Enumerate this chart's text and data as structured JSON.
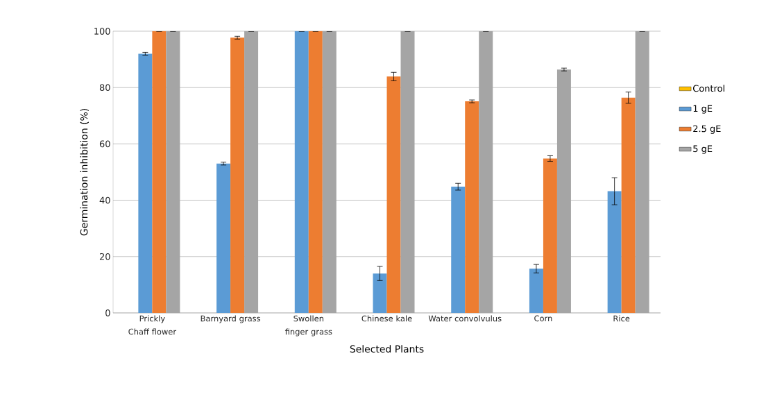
{
  "chart_data": {
    "type": "bar",
    "xlabel": "Selected Plants",
    "ylabel": "Germination inhibition (%)",
    "categories": [
      "Prickly Chaff flower",
      "Barnyard grass",
      "Swollen finger grass",
      "Chinese kale",
      "Water convolvulus",
      "Corn",
      "Rice"
    ],
    "series": [
      {
        "name": "Control",
        "color": "#ffc000",
        "values": [
          0,
          0,
          0,
          0,
          0,
          0,
          0
        ]
      },
      {
        "name": "1 gE",
        "color": "#5b9bd5",
        "values": [
          92,
          53,
          100,
          14,
          44.8,
          15.7,
          43.2
        ],
        "errors": [
          0.5,
          0.5,
          0,
          2.5,
          1.2,
          1.5,
          4.8
        ]
      },
      {
        "name": "2.5 gE",
        "color": "#ed7d31",
        "values": [
          100,
          97.7,
          100,
          83.9,
          75.1,
          54.8,
          76.4
        ],
        "errors": [
          0,
          0.5,
          0,
          1.5,
          0.5,
          1,
          2
        ]
      },
      {
        "name": "5 gE",
        "color": "#a5a5a5",
        "values": [
          100,
          100,
          100,
          100,
          100,
          86.4,
          100
        ],
        "errors": [
          0,
          0,
          0,
          0,
          0,
          0.5,
          0
        ]
      }
    ],
    "ylim": [
      0,
      100
    ],
    "yticks": [
      0,
      20,
      40,
      60,
      80,
      100
    ],
    "grid": "y",
    "legend": "right"
  }
}
